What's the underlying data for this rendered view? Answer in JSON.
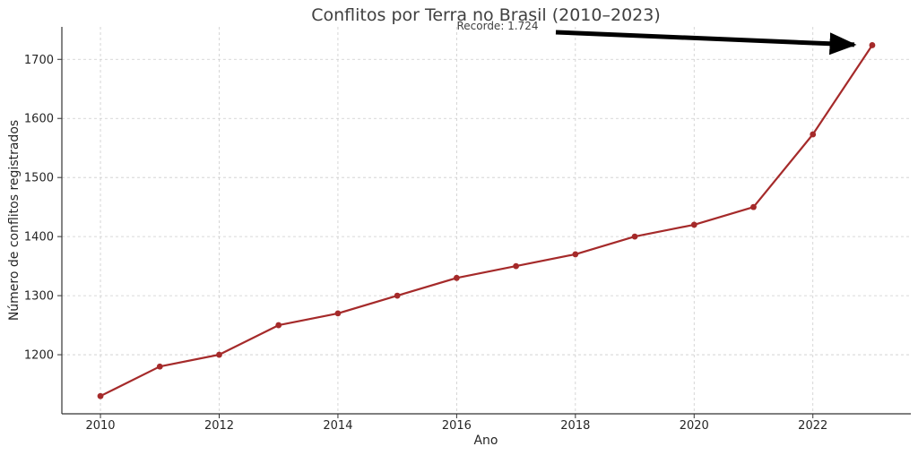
{
  "chart_data": {
    "type": "line",
    "title": "Conflitos por Terra no Brasil (2010–2023)",
    "xlabel": "Ano",
    "ylabel": "Número de conflitos registrados",
    "x": [
      2010,
      2011,
      2012,
      2013,
      2014,
      2015,
      2016,
      2017,
      2018,
      2019,
      2020,
      2021,
      2022,
      2023
    ],
    "values": [
      1130,
      1180,
      1200,
      1250,
      1270,
      1300,
      1330,
      1350,
      1370,
      1400,
      1420,
      1450,
      1573,
      1724
    ],
    "xlim": [
      2009.35,
      2023.65
    ],
    "ylim": [
      1100,
      1755
    ],
    "xticks": [
      2010,
      2012,
      2014,
      2016,
      2018,
      2020,
      2022
    ],
    "yticks": [
      1200,
      1300,
      1400,
      1500,
      1600,
      1700
    ],
    "grid": true,
    "line_color": "#a52a2a",
    "annotation": {
      "text": "Recorde: 1.724",
      "x": 2023,
      "y": 1724,
      "arrow_color": "#000000"
    }
  }
}
